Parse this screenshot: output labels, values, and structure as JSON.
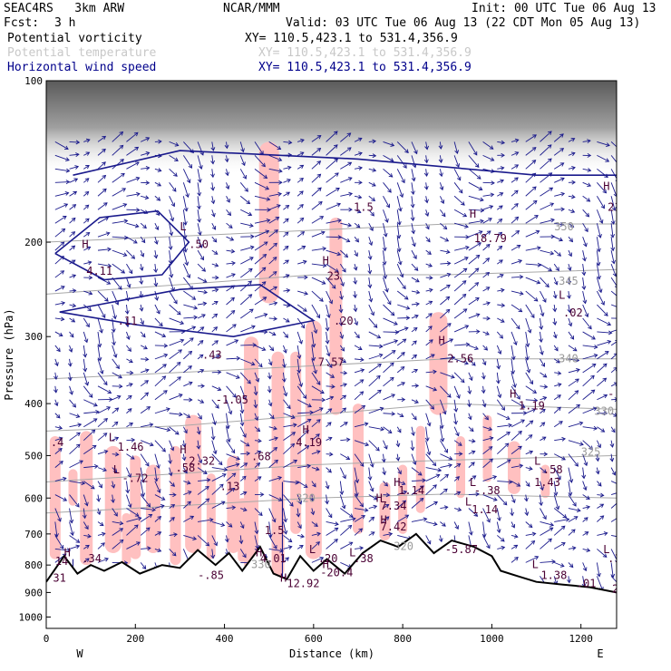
{
  "header": {
    "model": "SEAC4RS   3km ARW",
    "org": "NCAR/MMM",
    "init": "Init: 00 UTC Tue 06 Aug 13",
    "fcst_label": "Fcst:",
    "fcst_value": "3 h",
    "valid": "Valid: 03 UTC Tue 06 Aug 13 (22 CDT Mon 05 Aug 13)"
  },
  "fields": [
    {
      "name": "Potential vorticity",
      "xy": "XY= 110.5,423.1 to 531.4,356.9",
      "color": "#000000",
      "contour": "#4a0033"
    },
    {
      "name": "Potential temperature",
      "xy": "XY= 110.5,423.1 to 531.4,356.9",
      "color": "#c8c8c8",
      "contour": "#9a9a9a"
    },
    {
      "name": "Horizontal wind speed",
      "xy": "XY= 110.5,423.1 to 531.4,356.9",
      "color": "#00008b",
      "contour": "#00008b"
    }
  ],
  "chart_data": {
    "type": "cross-section",
    "xlabel": "Distance (km)",
    "ylabel": "Pressure (hPa)",
    "xlim": [
      0,
      1280
    ],
    "ylim": [
      1050,
      100
    ],
    "y_scale": "log",
    "x_ticks": [
      "0",
      "200",
      "400",
      "600",
      "800",
      "1000",
      "1200"
    ],
    "y_ticks": [
      "100",
      "200",
      "300",
      "400",
      "500",
      "600",
      "700",
      "800",
      "900",
      "1000"
    ],
    "endpoints": {
      "left": "W",
      "right": "E"
    },
    "colors": {
      "wind": "#1a1a8c",
      "pv_shade": "#ffc0c0",
      "terrain": "#000000",
      "theta": "#a8a8a8"
    },
    "terrain": [
      {
        "x": 0,
        "p": 860
      },
      {
        "x": 40,
        "p": 770
      },
      {
        "x": 70,
        "p": 830
      },
      {
        "x": 100,
        "p": 800
      },
      {
        "x": 130,
        "p": 820
      },
      {
        "x": 170,
        "p": 790
      },
      {
        "x": 210,
        "p": 830
      },
      {
        "x": 260,
        "p": 800
      },
      {
        "x": 300,
        "p": 810
      },
      {
        "x": 340,
        "p": 750
      },
      {
        "x": 380,
        "p": 800
      },
      {
        "x": 410,
        "p": 760
      },
      {
        "x": 440,
        "p": 820
      },
      {
        "x": 480,
        "p": 740
      },
      {
        "x": 510,
        "p": 830
      },
      {
        "x": 540,
        "p": 850
      },
      {
        "x": 570,
        "p": 770
      },
      {
        "x": 600,
        "p": 820
      },
      {
        "x": 630,
        "p": 780
      },
      {
        "x": 670,
        "p": 830
      },
      {
        "x": 710,
        "p": 760
      },
      {
        "x": 750,
        "p": 720
      },
      {
        "x": 790,
        "p": 740
      },
      {
        "x": 830,
        "p": 700
      },
      {
        "x": 870,
        "p": 760
      },
      {
        "x": 910,
        "p": 720
      },
      {
        "x": 960,
        "p": 740
      },
      {
        "x": 1000,
        "p": 770
      },
      {
        "x": 1020,
        "p": 820
      },
      {
        "x": 1060,
        "p": 840
      },
      {
        "x": 1100,
        "p": 860
      },
      {
        "x": 1160,
        "p": 870
      },
      {
        "x": 1220,
        "p": 880
      },
      {
        "x": 1280,
        "p": 900
      }
    ],
    "theta_contours": [
      {
        "label": "320",
        "pts": [
          [
            0,
            640
          ],
          [
            300,
            620
          ],
          [
            600,
            600
          ],
          [
            900,
            590
          ],
          [
            1280,
            600
          ]
        ]
      },
      {
        "label": "325",
        "pts": [
          [
            0,
            560
          ],
          [
            300,
            540
          ],
          [
            600,
            520
          ],
          [
            900,
            510
          ],
          [
            1280,
            500
          ]
        ]
      },
      {
        "label": "330",
        "pts": [
          [
            0,
            450
          ],
          [
            300,
            440
          ],
          [
            600,
            420
          ],
          [
            900,
            400
          ],
          [
            1280,
            410
          ]
        ]
      },
      {
        "label": "340",
        "pts": [
          [
            0,
            360
          ],
          [
            300,
            350
          ],
          [
            600,
            340
          ],
          [
            900,
            330
          ],
          [
            1280,
            330
          ]
        ]
      },
      {
        "label": "345",
        "pts": [
          [
            0,
            250
          ],
          [
            300,
            240
          ],
          [
            600,
            230
          ],
          [
            900,
            230
          ],
          [
            1280,
            225
          ]
        ]
      },
      {
        "label": "350",
        "pts": [
          [
            0,
            200
          ],
          [
            300,
            195
          ],
          [
            600,
            190
          ],
          [
            900,
            185
          ],
          [
            1280,
            185
          ]
        ]
      }
    ],
    "wind_speed_contours": [
      {
        "pts": [
          [
            20,
            210
          ],
          [
            120,
            180
          ],
          [
            250,
            175
          ],
          [
            320,
            200
          ],
          [
            260,
            230
          ],
          [
            130,
            235
          ],
          [
            20,
            210
          ]
        ]
      },
      {
        "pts": [
          [
            30,
            270
          ],
          [
            200,
            285
          ],
          [
            420,
            300
          ],
          [
            600,
            280
          ],
          [
            480,
            240
          ],
          [
            300,
            245
          ],
          [
            30,
            270
          ]
        ]
      },
      {
        "pts": [
          [
            60,
            150
          ],
          [
            300,
            135
          ],
          [
            700,
            140
          ],
          [
            1100,
            150
          ],
          [
            1280,
            150
          ]
        ]
      }
    ],
    "pv_labels": [
      {
        "t": "H",
        "x": 80,
        "p": 205
      },
      {
        "t": "4.11",
        "x": 90,
        "p": 230
      },
      {
        "t": "L",
        "x": 300,
        "p": 190
      },
      {
        "t": ".50",
        "x": 320,
        "p": 205
      },
      {
        "t": ".11",
        "x": 160,
        "p": 285
      },
      {
        "t": ".43",
        "x": 350,
        "p": 330
      },
      {
        "t": "-1.05",
        "x": 380,
        "p": 400
      },
      {
        "t": "L",
        "x": 140,
        "p": 470
      },
      {
        "t": "1.46",
        "x": 160,
        "p": 490
      },
      {
        "t": "H",
        "x": 300,
        "p": 495
      },
      {
        "t": "2.32",
        "x": 320,
        "p": 520
      },
      {
        "t": ".58",
        "x": 290,
        "p": 535
      },
      {
        "t": "L",
        "x": 150,
        "p": 540
      },
      {
        "t": "-.72",
        "x": 170,
        "p": 560
      },
      {
        "t": ".13",
        "x": 390,
        "p": 580
      },
      {
        "t": ".68",
        "x": 460,
        "p": 510
      },
      {
        "t": "4.19",
        "x": 560,
        "p": 480
      },
      {
        "t": "H",
        "x": 575,
        "p": 455
      },
      {
        "t": "H",
        "x": 620,
        "p": 220
      },
      {
        "t": "23",
        "x": 630,
        "p": 235
      },
      {
        "t": ".20",
        "x": 645,
        "p": 285
      },
      {
        "t": "7.57",
        "x": 610,
        "p": 340
      },
      {
        "t": "1.5",
        "x": 690,
        "p": 175
      },
      {
        "t": "H",
        "x": 880,
        "p": 310
      },
      {
        "t": "2.56",
        "x": 900,
        "p": 335
      },
      {
        "t": "H",
        "x": 1040,
        "p": 390
      },
      {
        "t": "1.19",
        "x": 1060,
        "p": 410
      },
      {
        "t": "H",
        "x": 950,
        "p": 180
      },
      {
        "t": "18.79",
        "x": 960,
        "p": 200
      },
      {
        "t": "L",
        "x": 1150,
        "p": 255
      },
      {
        "t": ".02",
        "x": 1160,
        "p": 275
      },
      {
        "t": "H",
        "x": 1250,
        "p": 160
      },
      {
        "t": "21.8",
        "x": 1260,
        "p": 175
      },
      {
        "t": "L",
        "x": 1095,
        "p": 520
      },
      {
        "t": ".58",
        "x": 1115,
        "p": 540
      },
      {
        "t": "1.43",
        "x": 1095,
        "p": 570
      },
      {
        "t": "H",
        "x": 780,
        "p": 570
      },
      {
        "t": "1.14",
        "x": 790,
        "p": 590
      },
      {
        "t": "L",
        "x": 950,
        "p": 570
      },
      {
        "t": "-.38",
        "x": 960,
        "p": 590
      },
      {
        "t": "H",
        "x": 740,
        "p": 610
      },
      {
        "t": "7.34",
        "x": 750,
        "p": 630
      },
      {
        "t": "L",
        "x": 940,
        "p": 620
      },
      {
        "t": "1.14",
        "x": 955,
        "p": 640
      },
      {
        "t": "7.42",
        "x": 750,
        "p": 690
      },
      {
        "t": "H",
        "x": 750,
        "p": 670
      },
      {
        "t": "-5.87",
        "x": 895,
        "p": 760
      },
      {
        "t": "1.5",
        "x": 490,
        "p": 700
      },
      {
        "t": "L",
        "x": 590,
        "p": 760
      },
      {
        "t": ".20",
        "x": 610,
        "p": 790
      },
      {
        "t": ".38",
        "x": 690,
        "p": 790
      },
      {
        "t": "L",
        "x": 680,
        "p": 770
      },
      {
        "t": "4.01",
        "x": 480,
        "p": 790
      },
      {
        "t": "H",
        "x": 470,
        "p": 770
      },
      {
        "t": "-20.4",
        "x": 615,
        "p": 840
      },
      {
        "t": "H",
        "x": 620,
        "p": 810
      },
      {
        "t": "12.92",
        "x": 540,
        "p": 880
      },
      {
        "t": "H",
        "x": 525,
        "p": 860
      },
      {
        "t": "-.85",
        "x": 340,
        "p": 850
      },
      {
        "t": ".34",
        "x": 80,
        "p": 790
      },
      {
        "t": "H",
        "x": 40,
        "p": 770
      },
      {
        "t": "14",
        "x": 20,
        "p": 800
      },
      {
        "t": "L",
        "x": 1090,
        "p": 810
      },
      {
        "t": "1.38",
        "x": 1110,
        "p": 850
      },
      {
        "t": ".01",
        "x": 1190,
        "p": 880
      },
      {
        "t": "L",
        "x": 1250,
        "p": 760
      },
      {
        "t": ".10",
        "x": 1260,
        "p": 790
      },
      {
        "t": ".4",
        "x": 10,
        "p": 480
      },
      {
        "t": "-.6",
        "x": 1260,
        "p": 390
      },
      {
        "t": "31",
        "x": 15,
        "p": 860
      },
      {
        "t": "23",
        "x": 1270,
        "p": 900
      }
    ],
    "theta_labels": [
      {
        "t": "350",
        "x": 1140,
        "p": 190
      },
      {
        "t": "345",
        "x": 1150,
        "p": 240
      },
      {
        "t": "340",
        "x": 1150,
        "p": 335
      },
      {
        "t": "330",
        "x": 1230,
        "p": 420
      },
      {
        "t": "325",
        "x": 1200,
        "p": 500
      },
      {
        "t": "320",
        "x": 560,
        "p": 610
      },
      {
        "t": "320",
        "x": 780,
        "p": 750
      },
      {
        "t": "330",
        "x": 460,
        "p": 810
      }
    ]
  }
}
